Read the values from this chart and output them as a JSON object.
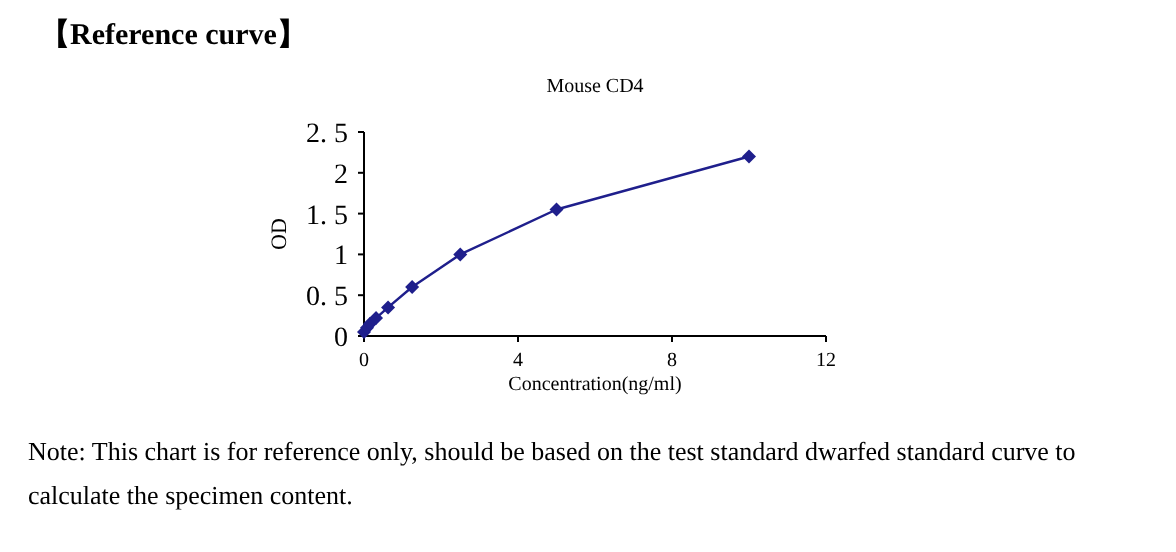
{
  "chart_data": {
    "type": "line",
    "title": "【Reference curve】",
    "subtitle": "Mouse CD4",
    "xlabel": "Concentration(ng/ml)",
    "ylabel": "OD",
    "annotations": [
      "Note: This chart is for reference only, should be based on the test standard dwarfed standard curve to calculate the specimen content."
    ],
    "x": [
      0,
      0.078,
      0.156,
      0.3125,
      0.625,
      1.25,
      2.5,
      5,
      10
    ],
    "series": [
      {
        "color": "#1f1f8c",
        "values": [
          0.05,
          0.1,
          0.15,
          0.22,
          0.35,
          0.6,
          1.0,
          1.55,
          2.2
        ]
      }
    ],
    "xlim": [
      0,
      12
    ],
    "xticks": [
      0,
      4,
      8,
      12
    ],
    "ylim": [
      0,
      2.5
    ],
    "yticks": [
      0,
      {
        "value": 0.5,
        "label": "0. 5"
      },
      1,
      {
        "value": 1.5,
        "label": "1. 5"
      },
      2,
      {
        "value": 2.5,
        "label": "2. 5"
      }
    ],
    "marker": "diamond",
    "line_style": "solid",
    "grid": false
  }
}
